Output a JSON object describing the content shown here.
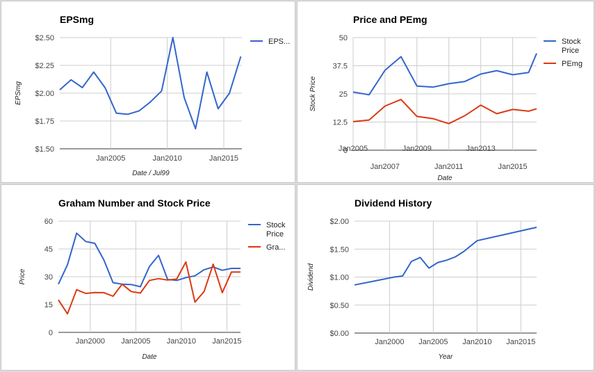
{
  "chart_data": [
    {
      "type": "line",
      "title": "EPSmg",
      "xlabel": "Date / Jul99",
      "ylabel": "EPSmg",
      "x_ticks": [
        "Jan2005",
        "Jan2010",
        "Jan2015"
      ],
      "x_tick_values": [
        2005,
        2010,
        2015
      ],
      "xlim": [
        2000.5,
        2016.6
      ],
      "y_ticks": [
        "$1.50",
        "$1.75",
        "$2.00",
        "$2.25",
        "$2.50"
      ],
      "ylim": [
        1.5,
        2.5
      ],
      "legend_position": "right",
      "series": [
        {
          "name": "EPS...",
          "color": "#3366cc",
          "x": [
            2000.5,
            2001.5,
            2002.5,
            2003.5,
            2004.5,
            2005.5,
            2006.5,
            2007.5,
            2008.5,
            2009.5,
            2010.5,
            2011.5,
            2012.5,
            2013.5,
            2014.5,
            2015.5,
            2016.5
          ],
          "values": [
            2.03,
            2.12,
            2.05,
            2.19,
            2.05,
            1.82,
            1.81,
            1.84,
            1.92,
            2.02,
            2.5,
            1.96,
            1.68,
            2.19,
            1.86,
            2.0,
            2.33
          ]
        }
      ]
    },
    {
      "type": "line",
      "title": "Price and PEmg",
      "xlabel": "Date",
      "ylabel": "Stock Price",
      "x_ticks": [
        "Jan2005",
        "Jan2007",
        "Jan2009",
        "Jan2011",
        "Jan2013",
        "Jan2015"
      ],
      "x_tick_values": [
        2005,
        2007,
        2009,
        2011,
        2013,
        2015
      ],
      "xlim": [
        2005,
        2016.5
      ],
      "y_ticks": [
        "0",
        "12.5",
        "25",
        "37.5",
        "50"
      ],
      "ylim": [
        0,
        50
      ],
      "legend_position": "right",
      "series": [
        {
          "name": "Stock Price",
          "name_lines": [
            "Stock",
            "Price"
          ],
          "color": "#3366cc",
          "x": [
            2005,
            2006,
            2007,
            2008,
            2009,
            2010,
            2011,
            2012,
            2013,
            2014,
            2015,
            2016,
            2016.5
          ],
          "values": [
            25.8,
            24.6,
            35.5,
            41.5,
            28.5,
            28,
            29.5,
            30.5,
            33.8,
            35.3,
            33.5,
            34.5,
            43
          ]
        },
        {
          "name": "PEmg",
          "color": "#dc3912",
          "x": [
            2005,
            2006,
            2007,
            2008,
            2009,
            2010,
            2011,
            2012,
            2013,
            2014,
            2015,
            2016,
            2016.5
          ],
          "values": [
            12.7,
            13.4,
            19.6,
            22.5,
            15,
            14,
            11.8,
            15.3,
            20,
            16.2,
            18.1,
            17.3,
            18.4
          ]
        }
      ]
    },
    {
      "type": "line",
      "title": "Graham Number and Stock Price",
      "xlabel": "Date",
      "ylabel": "Price",
      "x_ticks": [
        "Jan2000",
        "Jan2005",
        "Jan2010",
        "Jan2015"
      ],
      "x_tick_values": [
        2000,
        2005,
        2010,
        2015
      ],
      "xlim": [
        1996.5,
        2016.5
      ],
      "y_ticks": [
        "0",
        "15",
        "30",
        "45",
        "60"
      ],
      "ylim": [
        0,
        60
      ],
      "legend_position": "right",
      "series": [
        {
          "name": "Stock Price",
          "name_lines": [
            "Stock",
            "Price"
          ],
          "color": "#3366cc",
          "x": [
            1996.5,
            1997.5,
            1998.5,
            1999.5,
            2000.5,
            2001.5,
            2002.5,
            2003.5,
            2004.5,
            2005.5,
            2006.5,
            2007.5,
            2008.5,
            2009.5,
            2010.5,
            2011.5,
            2012.5,
            2013.5,
            2014.5,
            2015.5,
            2016.5
          ],
          "values": [
            26,
            36.5,
            53.5,
            49,
            48,
            39,
            26.8,
            26,
            25.8,
            24.6,
            35.5,
            41.5,
            28.5,
            28,
            29.5,
            30.5,
            33.8,
            35.3,
            33.5,
            34.5,
            34.5
          ]
        },
        {
          "name": "Gra...",
          "color": "#dc3912",
          "x": [
            1996.5,
            1997.5,
            1998.5,
            1999.5,
            2000.5,
            2001.5,
            2002.5,
            2003.5,
            2004.5,
            2005.5,
            2006.5,
            2007.5,
            2008.5,
            2009.5,
            2010.5,
            2011.5,
            2012.5,
            2013.5,
            2014.5,
            2015.5,
            2016.5
          ],
          "values": [
            17.5,
            10,
            23,
            21,
            21.5,
            21.4,
            19.5,
            26,
            22,
            21.2,
            28,
            29,
            28.2,
            28.8,
            38,
            16.3,
            22,
            36.8,
            21.4,
            32.5,
            32.5
          ]
        }
      ]
    },
    {
      "type": "line",
      "title": "Dividend History",
      "xlabel": "Year",
      "ylabel": "Dividend",
      "x_ticks": [
        "Jan2000",
        "Jan2005",
        "Jan2010",
        "Jan2015"
      ],
      "x_tick_values": [
        2000,
        2005,
        2010,
        2015
      ],
      "xlim": [
        1996,
        2016.8
      ],
      "y_ticks": [
        "$0.00",
        "$0.50",
        "$1.00",
        "$1.50",
        "$2.00"
      ],
      "ylim": [
        0,
        2
      ],
      "legend_position": "none",
      "series": [
        {
          "name": "",
          "color": "#3366cc",
          "x": [
            1996,
            1998,
            2000.5,
            2001.5,
            2002.5,
            2003.5,
            2004.5,
            2005.5,
            2006.5,
            2007.5,
            2008.5,
            2010,
            2012,
            2014,
            2016.8
          ],
          "values": [
            0.86,
            0.92,
            1.0,
            1.02,
            1.28,
            1.35,
            1.16,
            1.26,
            1.3,
            1.36,
            1.46,
            1.65,
            1.72,
            1.79,
            1.89
          ]
        }
      ]
    }
  ]
}
